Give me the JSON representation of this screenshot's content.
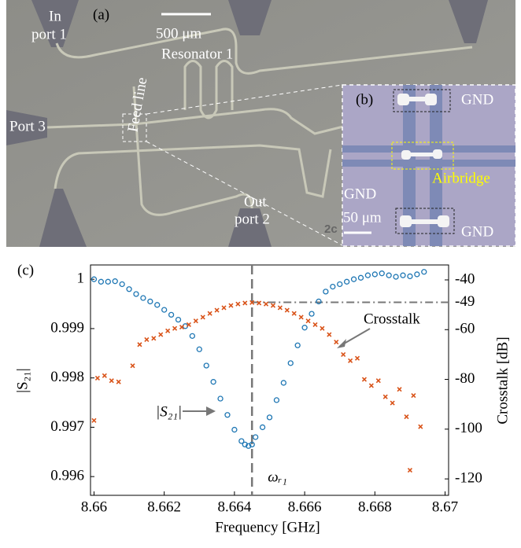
{
  "micrograph": {
    "panel_a": {
      "label": "(a)",
      "texts": [
        "In",
        "port 1",
        "500 μm",
        "Resonator 1",
        "Feed line",
        "Port 3",
        "Out",
        "port 2",
        "2c"
      ]
    },
    "panel_b": {
      "label": "(b)",
      "texts": [
        "GND",
        "GND",
        "GND",
        "Airbridge",
        "50 μm"
      ]
    }
  },
  "chart_data": {
    "type": "scatter",
    "panel_label": "(c)",
    "xlabel": "Frequency [GHz]",
    "ylabel": "|S₂₁|",
    "y2label": "Crosstalk [dB]",
    "xlim": [
      8.6599,
      8.6701
    ],
    "ylim": [
      0.99562,
      1.00029
    ],
    "y2lim": [
      -126.6,
      -34
    ],
    "xticks": [
      8.66,
      8.662,
      8.664,
      8.666,
      8.668,
      8.67
    ],
    "yticks": [
      0.996,
      0.997,
      0.998,
      0.999,
      1
    ],
    "y2ticks": [
      -120,
      -100,
      -80,
      -60,
      -49,
      -40
    ],
    "reference_lines": [
      {
        "axis": "x",
        "value": 8.6645,
        "label": "ωᵣ₁"
      },
      {
        "axis": "y2",
        "value": -49
      }
    ],
    "series": [
      {
        "name": "|S₂₁|",
        "marker": "circle",
        "color": "#1f77b4",
        "x": [
          8.66,
          8.6602,
          8.6604,
          8.6606,
          8.6608,
          8.661,
          8.6612,
          8.6614,
          8.6616,
          8.6618,
          8.662,
          8.6622,
          8.6624,
          8.6626,
          8.6628,
          8.663,
          8.6632,
          8.6634,
          8.6636,
          8.6638,
          8.664,
          8.6642,
          8.6643,
          8.6644,
          8.6645,
          8.6646,
          8.6648,
          8.665,
          8.6652,
          8.6654,
          8.6656,
          8.6658,
          8.666,
          8.6662,
          8.6664,
          8.6666,
          8.6668,
          8.667,
          8.6672,
          8.6674,
          8.6676,
          8.6678,
          8.668,
          8.6682,
          8.6684,
          8.6686,
          8.6688,
          8.669,
          8.6692,
          8.6694
        ],
        "values": [
          1,
          0.99995,
          0.99995,
          0.99996,
          0.9999,
          0.9998,
          0.9997,
          0.99962,
          0.99955,
          0.99948,
          0.99938,
          0.99928,
          0.99918,
          0.99905,
          0.99885,
          0.99858,
          0.99825,
          0.99792,
          0.99758,
          0.99725,
          0.99695,
          0.99672,
          0.99665,
          0.99662,
          0.99665,
          0.9968,
          0.997,
          0.9972,
          0.99755,
          0.9979,
          0.9983,
          0.99866,
          0.99902,
          0.9993,
          0.99955,
          0.99975,
          0.99985,
          0.9999,
          0.99995,
          1,
          1.00003,
          1.00008,
          1.0001,
          1.00012,
          1.00008,
          1.00005,
          1.00008,
          1.00006,
          1.0001,
          1.00015
        ]
      },
      {
        "name": "Crosstalk",
        "marker": "x",
        "axis": "y2",
        "color": "#d95319",
        "x": [
          8.66,
          8.6601,
          8.6603,
          8.6605,
          8.6607,
          8.6611,
          8.6613,
          8.6615,
          8.6617,
          8.6619,
          8.6621,
          8.6623,
          8.6625,
          8.6627,
          8.6629,
          8.6631,
          8.6633,
          8.6635,
          8.6637,
          8.6639,
          8.6641,
          8.6643,
          8.6645,
          8.6647,
          8.6649,
          8.6651,
          8.6653,
          8.6655,
          8.6657,
          8.6659,
          8.6661,
          8.6663,
          8.6665,
          8.6667,
          8.6669,
          8.6671,
          8.6673,
          8.6675,
          8.6677,
          8.6679,
          8.6681,
          8.6683,
          8.6685,
          8.6687,
          8.6689,
          8.669,
          8.6691,
          8.6693
        ],
        "values": [
          -96.5,
          -79.5,
          -78.5,
          -80.5,
          -81,
          -74.5,
          -66,
          -64,
          -63.5,
          -62,
          -60.5,
          -59.5,
          -59,
          -58,
          -56.5,
          -55,
          -53.5,
          -52.2,
          -51.2,
          -50.3,
          -49.7,
          -49.3,
          -49.1,
          -49.3,
          -49.7,
          -50.3,
          -51.2,
          -52.2,
          -53.5,
          -55,
          -56.5,
          -58,
          -59.5,
          -62,
          -65,
          -70,
          -72.5,
          -71.5,
          -80,
          -82.5,
          -80.5,
          -87,
          -89.5,
          -84,
          -95,
          -116.5,
          -86.5,
          -99
        ]
      }
    ]
  }
}
